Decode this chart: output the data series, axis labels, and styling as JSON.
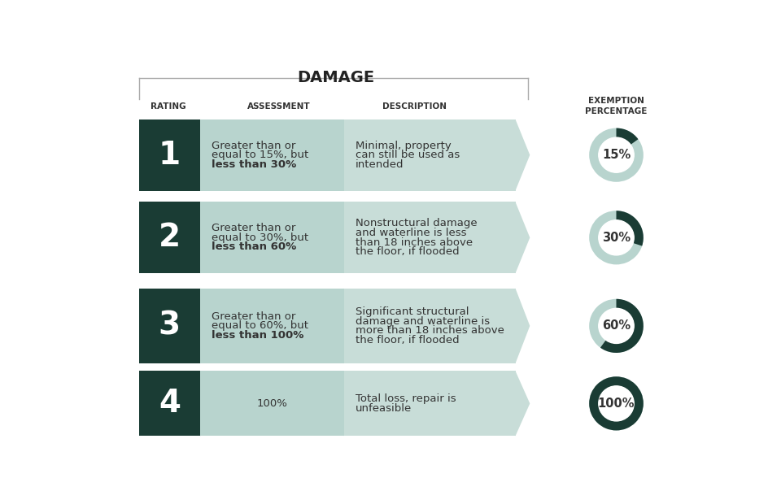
{
  "title": "DAMAGE",
  "bg_color": "#ffffff",
  "dark_teal": "#1a3c34",
  "light_teal": "#b8d4ce",
  "desc_teal": "#c8ddd8",
  "rows": [
    {
      "rating": "1",
      "assessment_lines": [
        "Greater than or",
        "equal to 15%, but",
        "less than 30%"
      ],
      "bold_line": 2,
      "description": "Minimal, property\ncan still be used as\nintended",
      "percentage": 15,
      "pct_label": "15%"
    },
    {
      "rating": "2",
      "assessment_lines": [
        "Greater than or",
        "equal to 30%, but",
        "less than 60%"
      ],
      "bold_line": 2,
      "description": "Nonstructural damage\nand waterline is less\nthan 18 inches above\nthe floor, if flooded",
      "percentage": 30,
      "pct_label": "30%"
    },
    {
      "rating": "3",
      "assessment_lines": [
        "Greater than or",
        "equal to 60%, but",
        "less than 100%"
      ],
      "bold_line": 2,
      "description": "Significant structural\ndamage and waterline is\nmore than 18 inches above\nthe floor, if flooded",
      "percentage": 60,
      "pct_label": "60%"
    },
    {
      "rating": "4",
      "assessment_lines": [
        "100%"
      ],
      "bold_line": 0,
      "description": "Total loss, repair is\nunfeasible",
      "percentage": 100,
      "pct_label": "100%"
    }
  ]
}
